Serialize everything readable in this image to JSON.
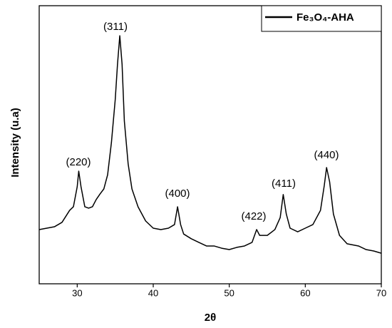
{
  "chart_data": {
    "type": "line",
    "x_label": "2θ",
    "y_label": "Intensity (u.a)",
    "xlim": [
      25,
      70
    ],
    "xticks": [
      30,
      40,
      50,
      60,
      70
    ],
    "ylim": [
      0,
      100
    ],
    "legend": "upper right",
    "series": [
      {
        "name": "Fe₃O₄-AHA",
        "color": "#000000",
        "x": [
          25,
          26,
          27,
          28,
          29,
          29.5,
          30,
          30.2,
          30.5,
          31,
          31.5,
          32,
          32.5,
          33,
          33.5,
          34,
          34.5,
          35,
          35.3,
          35.6,
          35.9,
          36.2,
          36.7,
          37.2,
          38,
          39,
          40,
          41,
          42,
          42.8,
          43.2,
          43.6,
          44,
          45,
          46,
          47,
          48,
          49,
          50,
          51,
          52,
          53,
          53.6,
          54,
          55,
          56,
          56.7,
          57.1,
          57.5,
          58,
          59,
          60,
          61,
          62,
          62.5,
          62.8,
          63.2,
          63.7,
          64.5,
          65.5,
          67,
          68,
          69,
          70
        ],
        "values": [
          19.5,
          20.0,
          20.5,
          22.1,
          26.4,
          27.7,
          34.9,
          40.5,
          34.9,
          27.7,
          27.2,
          27.7,
          30.3,
          32.3,
          34.1,
          39.2,
          50.8,
          66.2,
          79.0,
          89.2,
          79.0,
          58.5,
          43.1,
          34.1,
          27.7,
          22.6,
          20.0,
          19.5,
          20.0,
          21.3,
          27.7,
          21.3,
          17.9,
          16.2,
          14.9,
          13.6,
          13.6,
          12.8,
          12.3,
          13.1,
          13.6,
          14.9,
          19.5,
          17.4,
          17.4,
          19.5,
          23.8,
          32.1,
          25.1,
          20.0,
          18.7,
          20.0,
          21.3,
          26.4,
          35.4,
          41.8,
          36.7,
          25.1,
          17.4,
          14.4,
          13.6,
          12.3,
          11.8,
          11.0
        ]
      }
    ],
    "annotations": [
      "(220)",
      "(311)",
      "(400)",
      "(422)",
      "(411)",
      "(440)"
    ]
  }
}
